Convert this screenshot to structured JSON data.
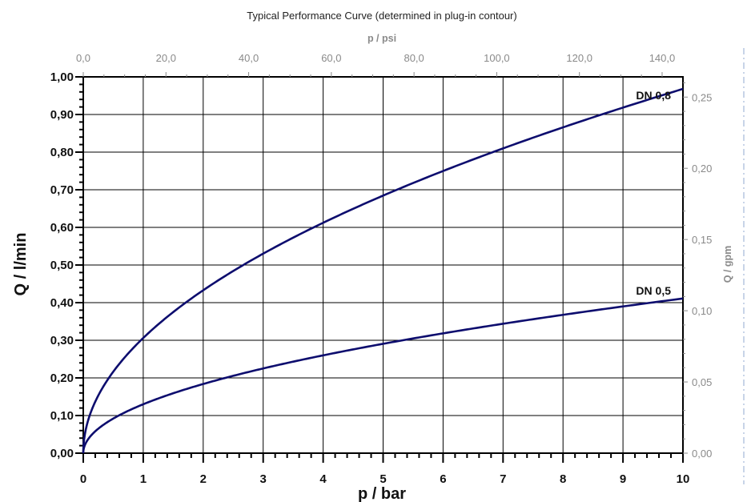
{
  "chart_data": {
    "type": "line",
    "title": "Typical Performance Curve (determined in plug-in contour)",
    "xlabel": "p / bar",
    "ylabel": "Q / l/min",
    "x_secondary_label": "p / psi",
    "y_secondary_label": "Q / gpm",
    "xlim": [
      0,
      10
    ],
    "ylim": [
      0,
      1.0
    ],
    "x_secondary_lim": [
      0,
      145.04
    ],
    "y_secondary_lim": [
      0,
      0.2642
    ],
    "x_ticks": [
      "0",
      "1",
      "2",
      "3",
      "4",
      "5",
      "6",
      "7",
      "8",
      "9",
      "10"
    ],
    "y_ticks": [
      "0,00",
      "0,10",
      "0,20",
      "0,30",
      "0,40",
      "0,50",
      "0,60",
      "0,70",
      "0,80",
      "0,90",
      "1,00"
    ],
    "x_secondary_ticks": [
      "0,0",
      "20,0",
      "40,0",
      "60,0",
      "80,0",
      "100,0",
      "120,0",
      "140,0"
    ],
    "y_secondary_ticks": [
      "0,00",
      "0,05",
      "0,10",
      "0,15",
      "0,20",
      "0,25"
    ],
    "grid": true,
    "series": [
      {
        "name": "DN 0,8",
        "color": "#0d0d6e",
        "x": [
          0,
          0.1,
          0.25,
          0.5,
          1,
          2,
          3,
          4,
          5,
          6,
          7,
          8,
          9,
          10
        ],
        "y": [
          0,
          0.097,
          0.153,
          0.216,
          0.306,
          0.433,
          0.53,
          0.612,
          0.684,
          0.75,
          0.81,
          0.866,
          0.918,
          0.968
        ]
      },
      {
        "name": "DN 0,5",
        "color": "#0d0d6e",
        "x": [
          0,
          0.1,
          0.25,
          0.5,
          1,
          2,
          3,
          4,
          5,
          6,
          7,
          8,
          9,
          10
        ],
        "y": [
          0,
          0.041,
          0.065,
          0.092,
          0.13,
          0.184,
          0.225,
          0.26,
          0.291,
          0.319,
          0.344,
          0.368,
          0.39,
          0.411
        ]
      }
    ]
  }
}
